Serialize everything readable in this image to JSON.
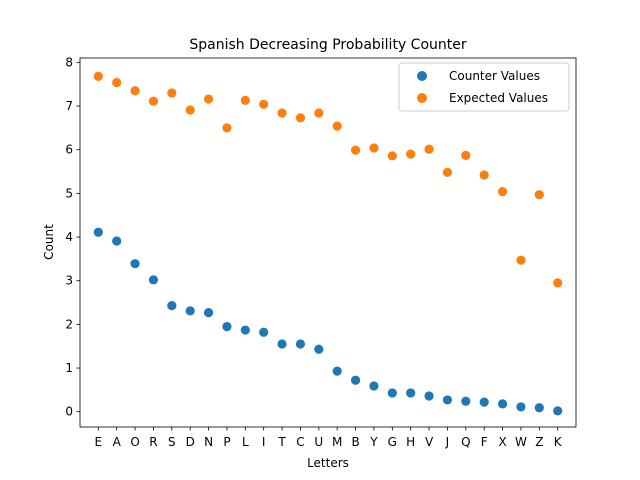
{
  "chart_data": {
    "type": "scatter",
    "title": "Spanish Decreasing Probability Counter",
    "xlabel": "Letters",
    "ylabel": "Count",
    "categories": [
      "E",
      "A",
      "O",
      "R",
      "S",
      "D",
      "N",
      "P",
      "L",
      "I",
      "T",
      "C",
      "U",
      "M",
      "B",
      "Y",
      "G",
      "H",
      "V",
      "J",
      "Q",
      "F",
      "X",
      "W",
      "Z",
      "K"
    ],
    "ylim": [
      -0.35,
      8.1
    ],
    "yticks": [
      0,
      1,
      2,
      3,
      4,
      5,
      6,
      7,
      8
    ],
    "grid": false,
    "legend_position": "top-right",
    "series": [
      {
        "name": "Counter Values",
        "color": "#1f77b4",
        "values": [
          4.11,
          3.91,
          3.39,
          3.02,
          2.43,
          2.31,
          2.27,
          1.95,
          1.87,
          1.82,
          1.55,
          1.55,
          1.43,
          0.93,
          0.72,
          0.59,
          0.43,
          0.43,
          0.36,
          0.27,
          0.24,
          0.22,
          0.18,
          0.11,
          0.09,
          0.02
        ]
      },
      {
        "name": "Expected Values",
        "color": "#ff7f0e",
        "values": [
          7.68,
          7.54,
          7.35,
          7.11,
          7.3,
          6.91,
          7.16,
          6.5,
          7.13,
          7.04,
          6.84,
          6.73,
          6.84,
          6.54,
          5.99,
          6.04,
          5.86,
          5.9,
          6.01,
          5.48,
          5.87,
          5.42,
          5.04,
          3.47,
          4.97,
          2.95
        ]
      }
    ]
  }
}
